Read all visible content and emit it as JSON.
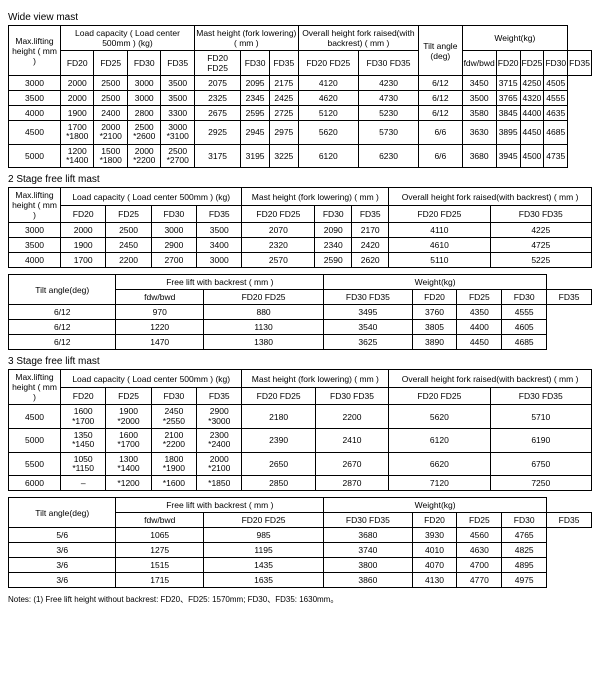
{
  "section1": {
    "title": "Wide view mast",
    "headers": {
      "maxlift": "Max.lifting height ( mm )",
      "loadcap": "Load capacity ( Load center 500mm ) (kg)",
      "mastheight": "Mast height (fork lowering) ( mm )",
      "overall": "Overall height fork raised(with backrest) ( mm )",
      "tilt": "Tilt angle (deg)",
      "weight": "Weight(kg)",
      "fd20": "FD20",
      "fd25": "FD25",
      "fd30": "FD30",
      "fd35": "FD35",
      "fd2025": "FD20 FD25",
      "fd3035": "FD30 FD35",
      "fdwbwd": "fdw/bwd"
    },
    "rows": [
      {
        "h": "3000",
        "lc": [
          "2000",
          "2500",
          "3000",
          "3500"
        ],
        "mh": [
          "2075",
          "2095",
          "2175"
        ],
        "ov": [
          "4120",
          "4230"
        ],
        "ta": "6/12",
        "w": [
          "3450",
          "3715",
          "4250",
          "4505"
        ]
      },
      {
        "h": "3500",
        "lc": [
          "2000",
          "2500",
          "3000",
          "3500"
        ],
        "mh": [
          "2325",
          "2345",
          "2425"
        ],
        "ov": [
          "4620",
          "4730"
        ],
        "ta": "6/12",
        "w": [
          "3500",
          "3765",
          "4320",
          "4555"
        ]
      },
      {
        "h": "4000",
        "lc": [
          "1900",
          "2400",
          "2800",
          "3300"
        ],
        "mh": [
          "2675",
          "2595",
          "2725"
        ],
        "ov": [
          "5120",
          "5230"
        ],
        "ta": "6/12",
        "w": [
          "3580",
          "3845",
          "4400",
          "4635"
        ]
      },
      {
        "h": "4500",
        "lc": [
          "1700\n*1800",
          "2000\n*2100",
          "2500\n*2600",
          "3000\n*3100"
        ],
        "mh": [
          "2925",
          "2945",
          "2975"
        ],
        "ov": [
          "5620",
          "5730"
        ],
        "ta": "6/6",
        "w": [
          "3630",
          "3895",
          "4450",
          "4685"
        ]
      },
      {
        "h": "5000",
        "lc": [
          "1200\n*1400",
          "1500\n*1800",
          "2000\n*2200",
          "2500\n*2700"
        ],
        "mh": [
          "3175",
          "3195",
          "3225"
        ],
        "ov": [
          "6120",
          "6230"
        ],
        "ta": "6/6",
        "w": [
          "3680",
          "3945",
          "4500",
          "4735"
        ]
      }
    ]
  },
  "section2": {
    "title": "2 Stage free lift mast",
    "t1": {
      "headers": {
        "maxlift": "Max.lifting height ( mm )",
        "loadcap": "Load capacity ( Load center 500mm ) (kg)",
        "mastheight": "Mast height (fork lowering) ( mm )",
        "overall": "Overall height fork raised(with backrest) ( mm )",
        "fd20": "FD20",
        "fd25": "FD25",
        "fd30": "FD30",
        "fd35": "FD35",
        "fd2025": "FD20 FD25",
        "fd3035": "FD30 FD35"
      },
      "rows": [
        {
          "h": "3000",
          "lc": [
            "2000",
            "2500",
            "3000",
            "3500"
          ],
          "mh": [
            "2070",
            "2090",
            "2170"
          ],
          "ov": [
            "4110",
            "4225"
          ]
        },
        {
          "h": "3500",
          "lc": [
            "1900",
            "2450",
            "2900",
            "3400"
          ],
          "mh": [
            "2320",
            "2340",
            "2420"
          ],
          "ov": [
            "4610",
            "4725"
          ]
        },
        {
          "h": "4000",
          "lc": [
            "1700",
            "2200",
            "2700",
            "3000"
          ],
          "mh": [
            "2570",
            "2590",
            "2620"
          ],
          "ov": [
            "5110",
            "5225"
          ]
        }
      ]
    },
    "t2": {
      "headers": {
        "tilt": "Tilt angle(deg)",
        "freelift": "Free lift with backrest ( mm )",
        "weight": "Weight(kg)",
        "fdwbwd": "fdw/bwd",
        "fd2025": "FD20 FD25",
        "fd3035": "FD30 FD35",
        "fd20": "FD20",
        "fd25": "FD25",
        "fd30": "FD30",
        "fd35": "FD35"
      },
      "rows": [
        {
          "ta": "6/12",
          "fl": [
            "970",
            "880"
          ],
          "w": [
            "3495",
            "3760",
            "4350",
            "4555"
          ]
        },
        {
          "ta": "6/12",
          "fl": [
            "1220",
            "1130"
          ],
          "w": [
            "3540",
            "3805",
            "4400",
            "4605"
          ]
        },
        {
          "ta": "6/12",
          "fl": [
            "1470",
            "1380"
          ],
          "w": [
            "3625",
            "3890",
            "4450",
            "4685"
          ]
        }
      ]
    }
  },
  "section3": {
    "title": "3 Stage free lift mast",
    "t1": {
      "headers": {
        "maxlift": "Max.lifting height ( mm )",
        "loadcap": "Load capacity ( Load center 500mm ) (kg)",
        "mastheight": "Mast height (fork lowering) ( mm )",
        "overall": "Overall height fork raised(with backrest) ( mm )",
        "fd20": "FD20",
        "fd25": "FD25",
        "fd30": "FD30",
        "fd35": "FD35",
        "fd2025": "FD20 FD25",
        "fd3035": "FD30 FD35"
      },
      "rows": [
        {
          "h": "4500",
          "lc": [
            "1600\n*1700",
            "1900\n*2000",
            "2450\n*2550",
            "2900\n*3000"
          ],
          "mh": [
            "2180",
            "2200"
          ],
          "ov": [
            "5620",
            "5710"
          ]
        },
        {
          "h": "5000",
          "lc": [
            "1350\n*1450",
            "1600\n*1700",
            "2100\n*2200",
            "2300\n*2400"
          ],
          "mh": [
            "2390",
            "2410"
          ],
          "ov": [
            "6120",
            "6190"
          ]
        },
        {
          "h": "5500",
          "lc": [
            "1050\n*1150",
            "1300\n*1400",
            "1800\n*1900",
            "2000\n*2100"
          ],
          "mh": [
            "2650",
            "2670"
          ],
          "ov": [
            "6620",
            "6750"
          ]
        },
        {
          "h": "6000",
          "lc": [
            "–",
            "*1200",
            "*1600",
            "*1850"
          ],
          "mh": [
            "2850",
            "2870"
          ],
          "ov": [
            "7120",
            "7250"
          ]
        }
      ]
    },
    "t2": {
      "headers": {
        "tilt": "Tilt angle(deg)",
        "freelift": "Free lift with backrest ( mm )",
        "weight": "Weight(kg)",
        "fdwbwd": "fdw/bwd",
        "fd2025": "FD20 FD25",
        "fd3035": "FD30 FD35",
        "fd20": "FD20",
        "fd25": "FD25",
        "fd30": "FD30",
        "fd35": "FD35"
      },
      "rows": [
        {
          "ta": "5/6",
          "fl": [
            "1065",
            "985"
          ],
          "w": [
            "3680",
            "3930",
            "4560",
            "4765"
          ]
        },
        {
          "ta": "3/6",
          "fl": [
            "1275",
            "1195"
          ],
          "w": [
            "3740",
            "4010",
            "4630",
            "4825"
          ]
        },
        {
          "ta": "3/6",
          "fl": [
            "1515",
            "1435"
          ],
          "w": [
            "3800",
            "4070",
            "4700",
            "4895"
          ]
        },
        {
          "ta": "3/6",
          "fl": [
            "1715",
            "1635"
          ],
          "w": [
            "3860",
            "4130",
            "4770",
            "4975"
          ]
        }
      ]
    }
  },
  "notes": "Notes: (1) Free lift height without backrest: FD20、FD25: 1570mm; FD30、FD35: 1630mm。"
}
